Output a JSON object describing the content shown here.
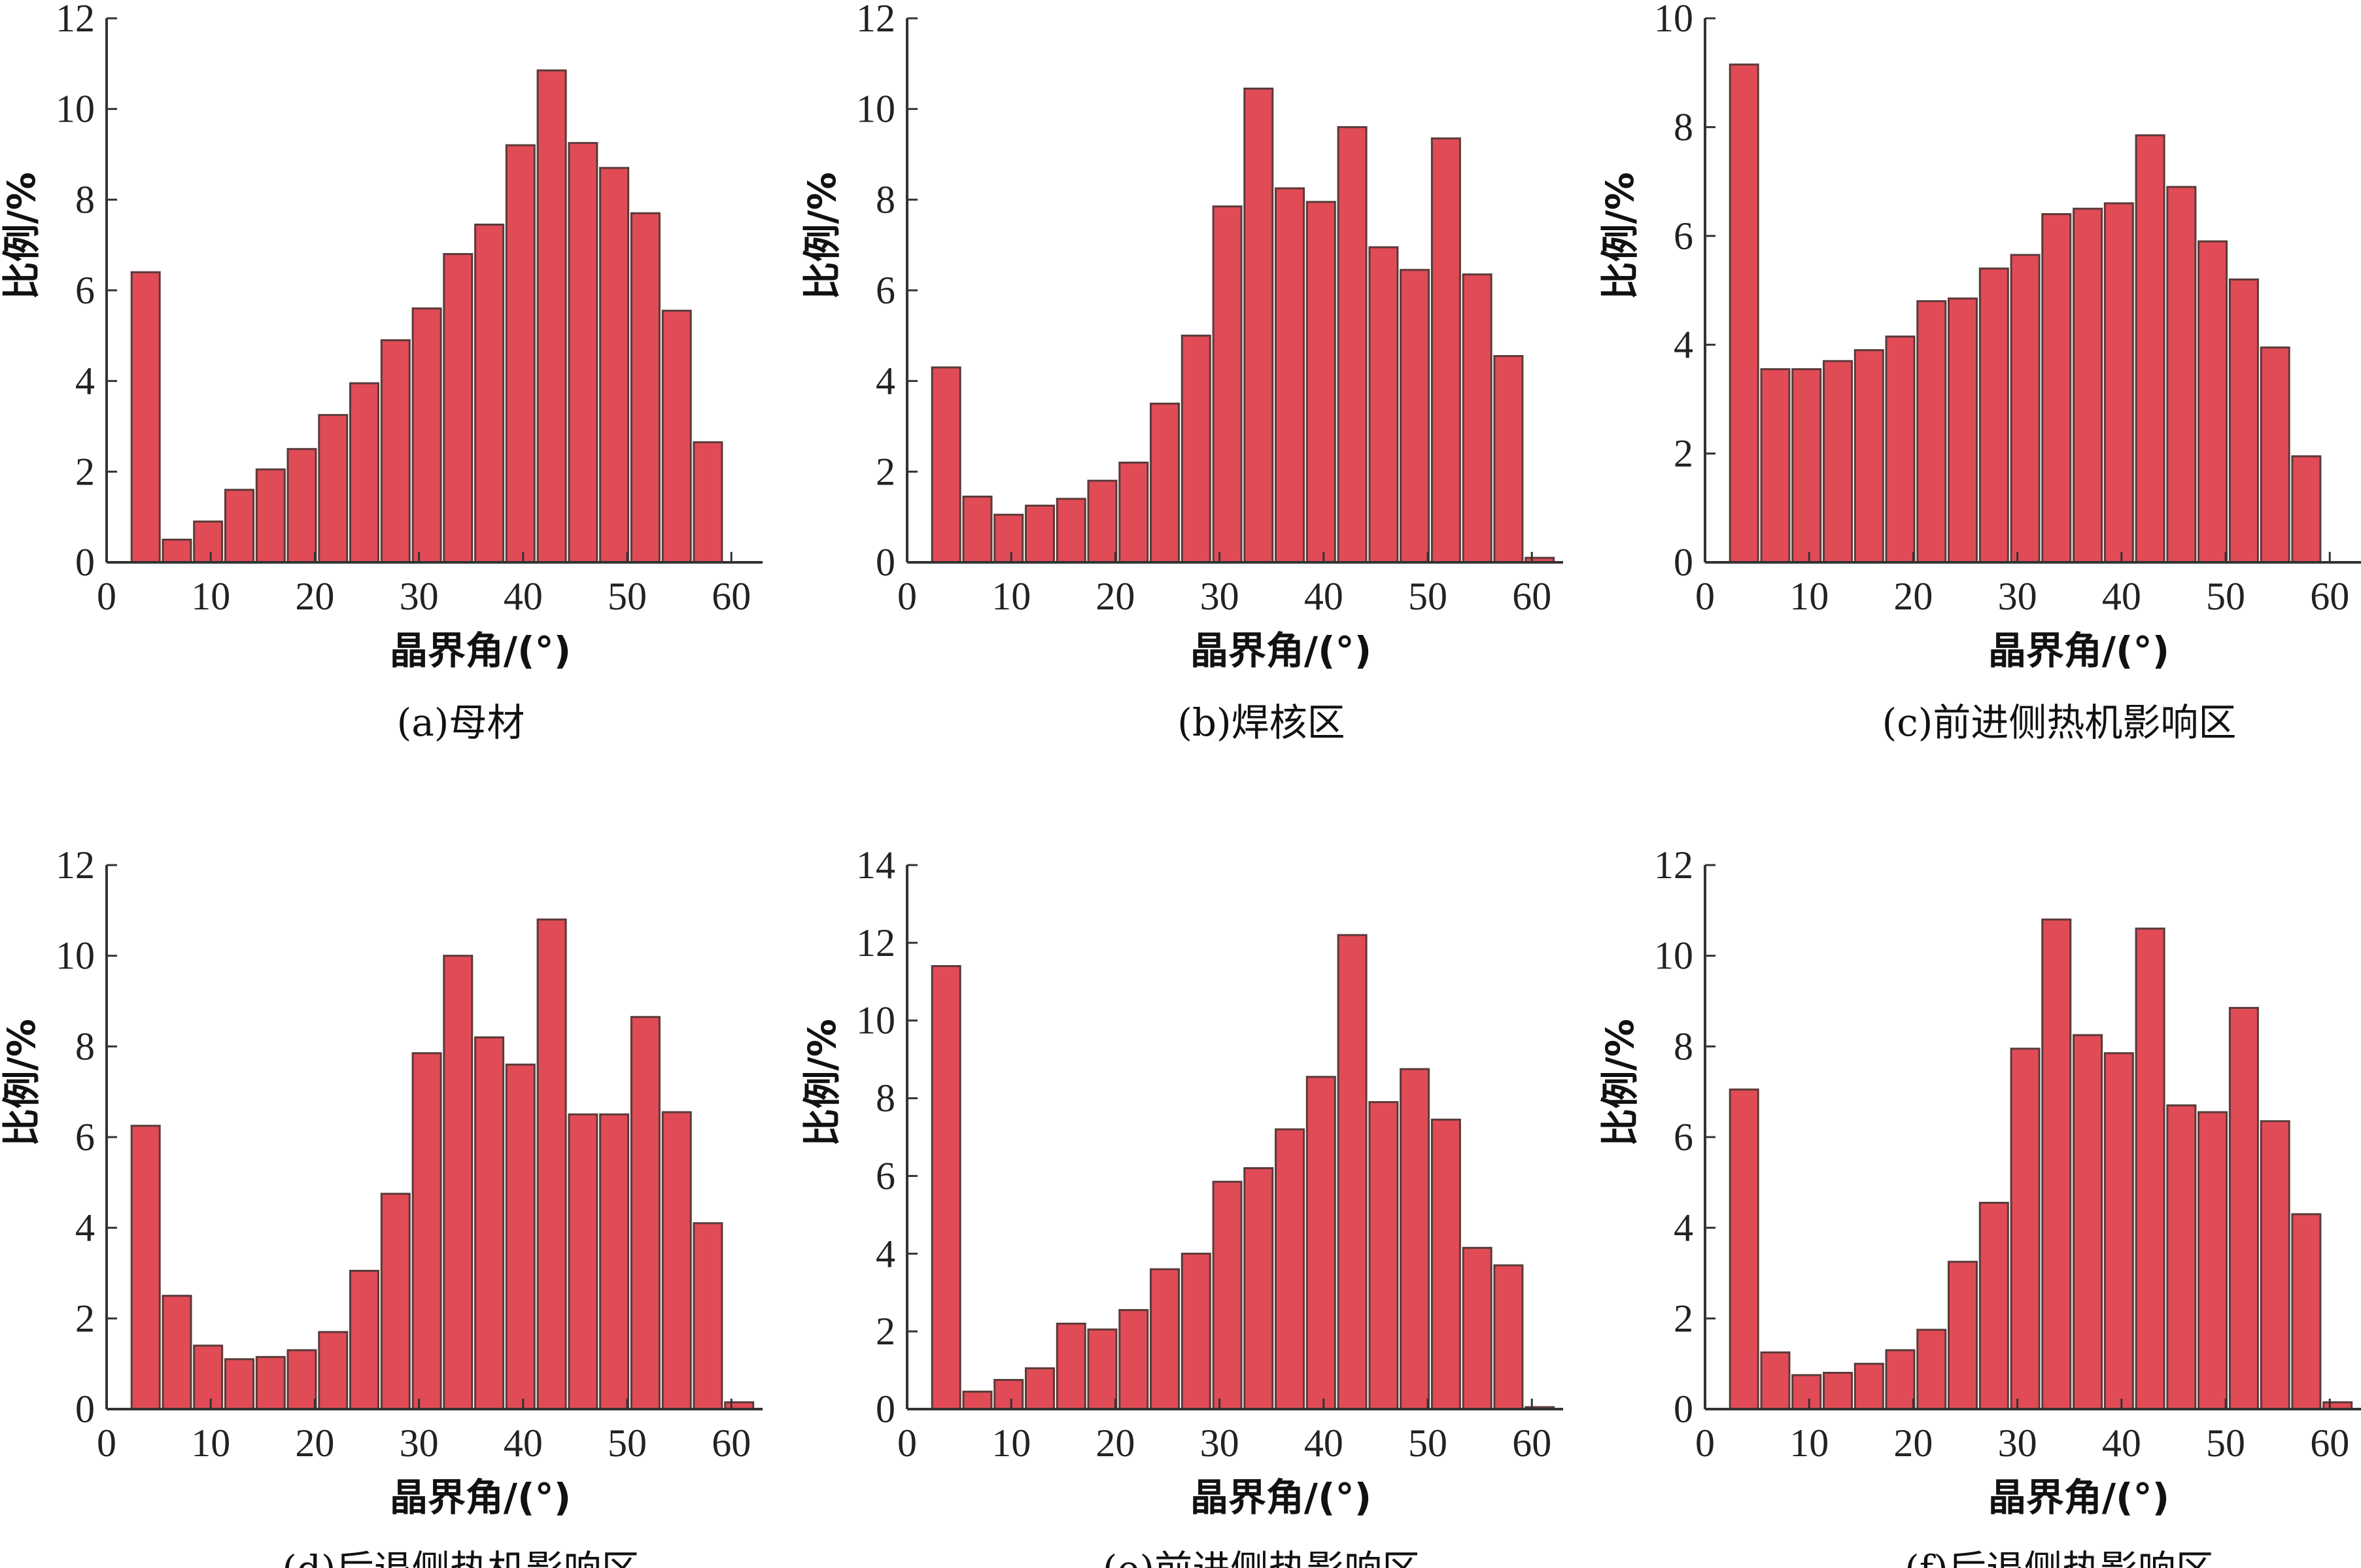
{
  "figure": {
    "bar_color": "#E14B55",
    "bar_edge_color": "#5a3a3a",
    "axis_color": "#333333"
  },
  "chart_data": [
    {
      "type": "bar",
      "caption": "(a)母材",
      "xlabel": "晶界角/(°)",
      "ylabel": "比例/%",
      "xlim": [
        0,
        63
      ],
      "ylim": [
        0,
        12
      ],
      "x_ticks": [
        0,
        10,
        20,
        30,
        40,
        50,
        60
      ],
      "y_ticks": [
        0,
        2,
        4,
        6,
        8,
        10,
        12
      ],
      "grid": false,
      "x": [
        3.75,
        6.75,
        9.75,
        12.75,
        15.75,
        18.75,
        21.75,
        24.75,
        27.75,
        30.75,
        33.75,
        36.75,
        39.75,
        42.75,
        45.75,
        48.75,
        51.75,
        54.75,
        57.75,
        60.75
      ],
      "values": [
        6.4,
        0.5,
        0.9,
        1.6,
        2.05,
        2.5,
        3.25,
        3.95,
        4.9,
        5.6,
        6.8,
        7.45,
        9.2,
        10.85,
        9.25,
        8.7,
        7.7,
        5.55,
        2.65,
        0
      ]
    },
    {
      "type": "bar",
      "caption": "(b)焊核区",
      "xlabel": "晶界角/(°)",
      "ylabel": "比例/%",
      "xlim": [
        0,
        63
      ],
      "ylim": [
        0,
        12
      ],
      "x_ticks": [
        0,
        10,
        20,
        30,
        40,
        50,
        60
      ],
      "y_ticks": [
        0,
        2,
        4,
        6,
        8,
        10,
        12
      ],
      "grid": false,
      "x": [
        3.75,
        6.75,
        9.75,
        12.75,
        15.75,
        18.75,
        21.75,
        24.75,
        27.75,
        30.75,
        33.75,
        36.75,
        39.75,
        42.75,
        45.75,
        48.75,
        51.75,
        54.75,
        57.75,
        60.75
      ],
      "values": [
        4.3,
        1.45,
        1.05,
        1.25,
        1.4,
        1.8,
        2.2,
        3.5,
        5.0,
        7.85,
        10.45,
        8.25,
        7.95,
        9.6,
        6.95,
        6.45,
        9.35,
        6.35,
        4.55,
        0.1
      ]
    },
    {
      "type": "bar",
      "caption": "(c)前进侧热机影响区",
      "xlabel": "晶界角/(°)",
      "ylabel": "比例/%",
      "xlim": [
        0,
        63
      ],
      "ylim": [
        0,
        10
      ],
      "x_ticks": [
        0,
        10,
        20,
        30,
        40,
        50,
        60
      ],
      "y_ticks": [
        0,
        2,
        4,
        6,
        8,
        10
      ],
      "grid": false,
      "x": [
        3.75,
        6.75,
        9.75,
        12.75,
        15.75,
        18.75,
        21.75,
        24.75,
        27.75,
        30.75,
        33.75,
        36.75,
        39.75,
        42.75,
        45.75,
        48.75,
        51.75,
        54.75,
        57.75,
        60.75
      ],
      "values": [
        9.15,
        3.55,
        3.55,
        3.7,
        3.9,
        4.15,
        4.8,
        4.85,
        5.4,
        5.65,
        6.4,
        6.5,
        6.6,
        7.85,
        6.9,
        5.9,
        5.2,
        3.95,
        1.95,
        0
      ]
    },
    {
      "type": "bar",
      "caption": "(d)后退侧热机影响区",
      "xlabel": "晶界角/(°)",
      "ylabel": "比例/%",
      "xlim": [
        0,
        63
      ],
      "ylim": [
        0,
        12
      ],
      "x_ticks": [
        0,
        10,
        20,
        30,
        40,
        50,
        60
      ],
      "y_ticks": [
        0,
        2,
        4,
        6,
        8,
        10,
        12
      ],
      "grid": false,
      "x": [
        3.75,
        6.75,
        9.75,
        12.75,
        15.75,
        18.75,
        21.75,
        24.75,
        27.75,
        30.75,
        33.75,
        36.75,
        39.75,
        42.75,
        45.75,
        48.75,
        51.75,
        54.75,
        57.75,
        60.75
      ],
      "values": [
        6.25,
        2.5,
        1.4,
        1.1,
        1.15,
        1.3,
        1.7,
        3.05,
        4.75,
        7.85,
        10.0,
        8.2,
        7.6,
        10.8,
        6.5,
        6.5,
        8.65,
        6.55,
        4.1,
        0.15
      ]
    },
    {
      "type": "bar",
      "caption": "(e)前进侧热影响区",
      "xlabel": "晶界角/(°)",
      "ylabel": "比例/%",
      "xlim": [
        0,
        63
      ],
      "ylim": [
        0,
        14
      ],
      "x_ticks": [
        0,
        10,
        20,
        30,
        40,
        50,
        60
      ],
      "y_ticks": [
        0,
        2,
        4,
        6,
        8,
        10,
        12,
        14
      ],
      "grid": false,
      "x": [
        3.75,
        6.75,
        9.75,
        12.75,
        15.75,
        18.75,
        21.75,
        24.75,
        27.75,
        30.75,
        33.75,
        36.75,
        39.75,
        42.75,
        45.75,
        48.75,
        51.75,
        54.75,
        57.75,
        60.75
      ],
      "values": [
        11.4,
        0.45,
        0.75,
        1.05,
        2.2,
        2.05,
        2.55,
        3.6,
        4.0,
        5.85,
        6.2,
        7.2,
        8.55,
        12.2,
        7.9,
        8.75,
        7.45,
        4.15,
        3.7,
        0.05
      ]
    },
    {
      "type": "bar",
      "caption": "(f)后退侧热影响区",
      "xlabel": "晶界角/(°)",
      "ylabel": "比例/%",
      "xlim": [
        0,
        63
      ],
      "ylim": [
        0,
        12
      ],
      "x_ticks": [
        0,
        10,
        20,
        30,
        40,
        50,
        60
      ],
      "y_ticks": [
        0,
        2,
        4,
        6,
        8,
        10,
        12
      ],
      "grid": false,
      "x": [
        3.75,
        6.75,
        9.75,
        12.75,
        15.75,
        18.75,
        21.75,
        24.75,
        27.75,
        30.75,
        33.75,
        36.75,
        39.75,
        42.75,
        45.75,
        48.75,
        51.75,
        54.75,
        57.75,
        60.75
      ],
      "values": [
        7.05,
        1.25,
        0.75,
        0.8,
        1.0,
        1.3,
        1.75,
        3.25,
        4.55,
        7.95,
        10.8,
        8.25,
        7.85,
        10.6,
        6.7,
        6.55,
        8.85,
        6.35,
        4.3,
        0.15
      ]
    }
  ]
}
